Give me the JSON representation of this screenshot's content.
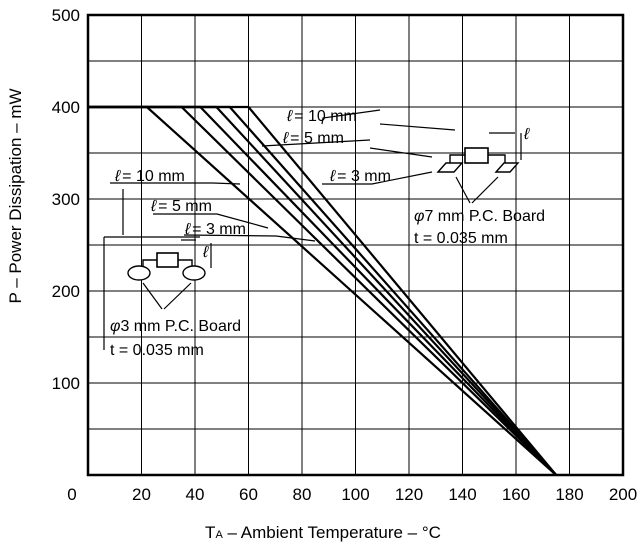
{
  "chart_data": {
    "type": "line",
    "xlabel": {
      "sub_prefix": "T",
      "sub": "A",
      "rest": " – Ambient Temperature – °C"
    },
    "ylabel": "P – Power Dissipation – mW",
    "xlim": [
      0,
      200
    ],
    "ylim": [
      0,
      500
    ],
    "x_ticks": [
      0,
      20,
      40,
      60,
      80,
      100,
      120,
      140,
      160,
      180,
      200
    ],
    "y_ticks": [
      100,
      200,
      300,
      400,
      500
    ],
    "grid": true,
    "series": [
      {
        "x": [
          0,
          60,
          175
        ],
        "y": [
          400,
          400,
          0
        ]
      },
      {
        "x": [
          0,
          53,
          175
        ],
        "y": [
          400,
          400,
          0
        ]
      },
      {
        "x": [
          0,
          48,
          175
        ],
        "y": [
          400,
          400,
          0
        ]
      },
      {
        "x": [
          0,
          42,
          175
        ],
        "y": [
          400,
          400,
          0
        ]
      },
      {
        "x": [
          0,
          35,
          175
        ],
        "y": [
          400,
          400,
          0
        ]
      },
      {
        "x": [
          0,
          22,
          175
        ],
        "y": [
          400,
          400,
          0
        ]
      }
    ],
    "annotations": {
      "ell": "ℓ",
      "phi": "φ",
      "big_board": {
        "labels": [
          "= 10 mm",
          "= 5 mm",
          "= 3 mm"
        ],
        "board": "7 mm P.C. Board",
        "thickness": "t = 0.035 mm"
      },
      "small_board": {
        "labels": [
          "= 10 mm",
          "= 5 mm",
          "= 3 mm"
        ],
        "board": "3 mm P.C. Board",
        "thickness": "t = 0.035 mm"
      }
    }
  }
}
